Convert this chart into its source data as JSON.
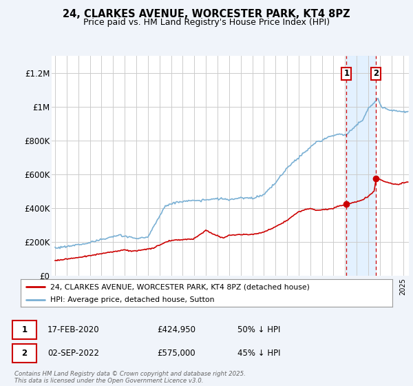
{
  "title": "24, CLARKES AVENUE, WORCESTER PARK, KT4 8PZ",
  "subtitle": "Price paid vs. HM Land Registry's House Price Index (HPI)",
  "ylabel_ticks": [
    "£0",
    "£200K",
    "£400K",
    "£600K",
    "£800K",
    "£1M",
    "£1.2M"
  ],
  "ytick_values": [
    0,
    200000,
    400000,
    600000,
    800000,
    1000000,
    1200000
  ],
  "ylim": [
    0,
    1300000
  ],
  "xlim_start": 1994.7,
  "xlim_end": 2025.5,
  "red_line_color": "#cc0000",
  "blue_line_color": "#7ab0d4",
  "purchase1_x": 2020.12,
  "purchase1_price": 424950,
  "purchase2_x": 2022.67,
  "purchase2_price": 575000,
  "legend_red_label": "24, CLARKES AVENUE, WORCESTER PARK, KT4 8PZ (detached house)",
  "legend_blue_label": "HPI: Average price, detached house, Sutton",
  "footnote": "Contains HM Land Registry data © Crown copyright and database right 2025.\nThis data is licensed under the Open Government Licence v3.0.",
  "background_color": "#f0f4fa",
  "plot_bg_color": "#ffffff",
  "grid_color": "#cccccc",
  "shade_color": "#ddeeff"
}
